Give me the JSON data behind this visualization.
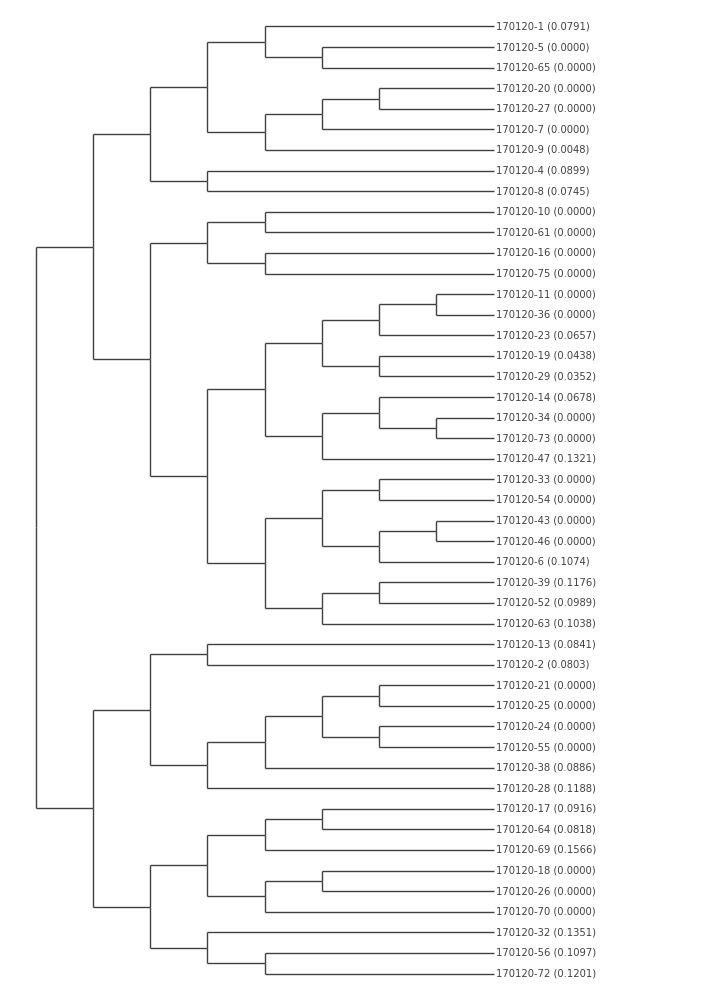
{
  "leaves": [
    "170120-1 (0.0791)",
    "170120-5 (0.0000)",
    "170120-65 (0.0000)",
    "170120-20 (0.0000)",
    "170120-27 (0.0000)",
    "170120-7 (0.0000)",
    "170120-9 (0.0048)",
    "170120-4 (0.0899)",
    "170120-8 (0.0745)",
    "170120-10 (0.0000)",
    "170120-61 (0.0000)",
    "170120-16 (0.0000)",
    "170120-75 (0.0000)",
    "170120-11 (0.0000)",
    "170120-36 (0.0000)",
    "170120-23 (0.0657)",
    "170120-19 (0.0438)",
    "170120-29 (0.0352)",
    "170120-14 (0.0678)",
    "170120-34 (0.0000)",
    "170120-73 (0.0000)",
    "170120-47 (0.1321)",
    "170120-33 (0.0000)",
    "170120-54 (0.0000)",
    "170120-43 (0.0000)",
    "170120-46 (0.0000)",
    "170120-6 (0.1074)",
    "170120-39 (0.1176)",
    "170120-52 (0.0989)",
    "170120-63 (0.1038)",
    "170120-13 (0.0841)",
    "170120-2 (0.0803)",
    "170120-21 (0.0000)",
    "170120-25 (0.0000)",
    "170120-24 (0.0000)",
    "170120-55 (0.0000)",
    "170120-38 (0.0886)",
    "170120-28 (0.1188)",
    "170120-17 (0.0916)",
    "170120-64 (0.0818)",
    "170120-69 (0.1566)",
    "170120-18 (0.0000)",
    "170120-26 (0.0000)",
    "170120-70 (0.0000)",
    "170120-32 (0.1351)",
    "170120-56 (0.1097)",
    "170120-72 (0.1201)"
  ],
  "tree": {
    "id": "root",
    "children": [
      {
        "id": "n_big_top",
        "children": [
          {
            "id": "n_grp1",
            "children": [
              {
                "id": "n_top_grp1",
                "children": [
                  {
                    "id": "n1_565",
                    "children": [
                      {
                        "id": "leaf_0"
                      },
                      {
                        "id": "n5_65",
                        "children": [
                          {
                            "id": "leaf_1"
                          },
                          {
                            "id": "leaf_2"
                          }
                        ]
                      }
                    ]
                  },
                  {
                    "id": "n20_27_7_9",
                    "children": [
                      {
                        "id": "n20_27_7",
                        "children": [
                          {
                            "id": "n20_27",
                            "children": [
                              {
                                "id": "leaf_3"
                              },
                              {
                                "id": "leaf_4"
                              }
                            ]
                          },
                          {
                            "id": "leaf_5"
                          }
                        ]
                      },
                      {
                        "id": "leaf_6"
                      }
                    ]
                  }
                ]
              },
              {
                "id": "n4_8",
                "children": [
                  {
                    "id": "leaf_7"
                  },
                  {
                    "id": "leaf_8"
                  }
                ]
              }
            ]
          },
          {
            "id": "n_grp2_top",
            "children": [
              {
                "id": "n10_61_16_75",
                "children": [
                  {
                    "id": "n10_61",
                    "children": [
                      {
                        "id": "leaf_9"
                      },
                      {
                        "id": "leaf_10"
                      }
                    ]
                  },
                  {
                    "id": "n16_75",
                    "children": [
                      {
                        "id": "leaf_11"
                      },
                      {
                        "id": "leaf_12"
                      }
                    ]
                  }
                ]
              },
              {
                "id": "n_lwr_grp1_top",
                "children": [
                  {
                    "id": "n_mid_grp",
                    "children": [
                      {
                        "id": "n11_29",
                        "children": [
                          {
                            "id": "n11_36_23",
                            "children": [
                              {
                                "id": "n11_36",
                                "children": [
                                  {
                                    "id": "leaf_13"
                                  },
                                  {
                                    "id": "leaf_14"
                                  }
                                ]
                              },
                              {
                                "id": "leaf_15"
                              }
                            ]
                          },
                          {
                            "id": "n19_29",
                            "children": [
                              {
                                "id": "leaf_16"
                              },
                              {
                                "id": "leaf_17"
                              }
                            ]
                          }
                        ]
                      },
                      {
                        "id": "n14_47",
                        "children": [
                          {
                            "id": "n14_73",
                            "children": [
                              {
                                "id": "leaf_18"
                              },
                              {
                                "id": "n34_73",
                                "children": [
                                  {
                                    "id": "leaf_19"
                                  },
                                  {
                                    "id": "leaf_20"
                                  }
                                ]
                              }
                            ]
                          },
                          {
                            "id": "leaf_21"
                          }
                        ]
                      }
                    ]
                  },
                  {
                    "id": "n_lwr_grp1",
                    "children": [
                      {
                        "id": "n33_6",
                        "children": [
                          {
                            "id": "n33_54",
                            "children": [
                              {
                                "id": "leaf_22"
                              },
                              {
                                "id": "leaf_23"
                              }
                            ]
                          },
                          {
                            "id": "n43_6",
                            "children": [
                              {
                                "id": "n43_46",
                                "children": [
                                  {
                                    "id": "leaf_24"
                                  },
                                  {
                                    "id": "leaf_25"
                                  }
                                ]
                              },
                              {
                                "id": "leaf_26"
                              }
                            ]
                          }
                        ]
                      },
                      {
                        "id": "n39_63",
                        "children": [
                          {
                            "id": "n39_52",
                            "children": [
                              {
                                "id": "leaf_27"
                              },
                              {
                                "id": "leaf_28"
                              }
                            ]
                          },
                          {
                            "id": "leaf_29"
                          }
                        ]
                      }
                    ]
                  }
                ]
              }
            ]
          }
        ]
      },
      {
        "id": "n_bot_grp_all",
        "children": [
          {
            "id": "n13_28",
            "children": [
              {
                "id": "n13_2",
                "children": [
                  {
                    "id": "leaf_30"
                  },
                  {
                    "id": "leaf_31"
                  }
                ]
              },
              {
                "id": "n21_28",
                "children": [
                  {
                    "id": "n21_38",
                    "children": [
                      {
                        "id": "n21_55",
                        "children": [
                          {
                            "id": "n21_25",
                            "children": [
                              {
                                "id": "leaf_32"
                              },
                              {
                                "id": "leaf_33"
                              }
                            ]
                          },
                          {
                            "id": "n24_55",
                            "children": [
                              {
                                "id": "leaf_34"
                              },
                              {
                                "id": "leaf_35"
                              }
                            ]
                          }
                        ]
                      },
                      {
                        "id": "leaf_36"
                      }
                    ]
                  },
                  {
                    "id": "leaf_37"
                  }
                ]
              }
            ]
          },
          {
            "id": "n_bot_grp2",
            "children": [
              {
                "id": "n17_70",
                "children": [
                  {
                    "id": "n17_69",
                    "children": [
                      {
                        "id": "n17_64",
                        "children": [
                          {
                            "id": "leaf_38"
                          },
                          {
                            "id": "leaf_39"
                          }
                        ]
                      },
                      {
                        "id": "leaf_40"
                      }
                    ]
                  },
                  {
                    "id": "n18_70",
                    "children": [
                      {
                        "id": "n18_26",
                        "children": [
                          {
                            "id": "leaf_41"
                          },
                          {
                            "id": "leaf_42"
                          }
                        ]
                      },
                      {
                        "id": "leaf_43"
                      }
                    ]
                  }
                ]
              },
              {
                "id": "n32_72",
                "children": [
                  {
                    "id": "leaf_44"
                  },
                  {
                    "id": "n56_72",
                    "children": [
                      {
                        "id": "leaf_45"
                      },
                      {
                        "id": "leaf_46"
                      }
                    ]
                  }
                ]
              }
            ]
          }
        ]
      }
    ]
  },
  "line_color": "#404040",
  "line_width": 1.0,
  "font_size": 7.2,
  "bg_color": "#ffffff",
  "text_color": "#404040"
}
